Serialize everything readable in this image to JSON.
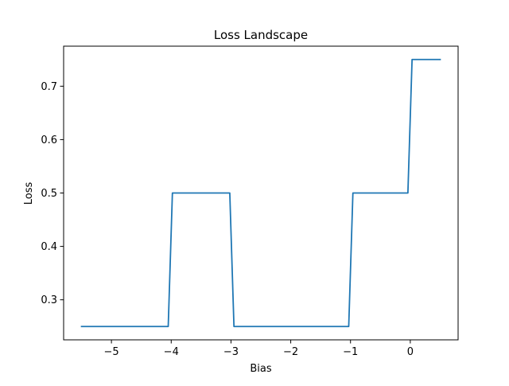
{
  "chart_data": {
    "type": "line",
    "title": "Loss Landscape",
    "xlabel": "Bias",
    "ylabel": "Loss",
    "xlim": [
      -5.8,
      0.8
    ],
    "ylim": [
      0.225,
      0.775
    ],
    "grid": false,
    "x_ticks": [
      {
        "value": -5,
        "label": "−5"
      },
      {
        "value": -4,
        "label": "−4"
      },
      {
        "value": -3,
        "label": "−3"
      },
      {
        "value": -2,
        "label": "−2"
      },
      {
        "value": -1,
        "label": "−1"
      },
      {
        "value": 0,
        "label": "0"
      }
    ],
    "y_ticks": [
      {
        "value": 0.3,
        "label": "0.3"
      },
      {
        "value": 0.4,
        "label": "0.4"
      },
      {
        "value": 0.5,
        "label": "0.5"
      },
      {
        "value": 0.6,
        "label": "0.6"
      },
      {
        "value": 0.7,
        "label": "0.7"
      }
    ],
    "series": [
      {
        "color": "#1f77b4",
        "x": [
          -5.5,
          -4.05,
          -3.98,
          -3.02,
          -2.95,
          -1.03,
          -0.96,
          -0.04,
          0.03,
          0.5
        ],
        "y": [
          0.25,
          0.25,
          0.5,
          0.5,
          0.25,
          0.25,
          0.5,
          0.5,
          0.75,
          0.75
        ]
      }
    ]
  }
}
